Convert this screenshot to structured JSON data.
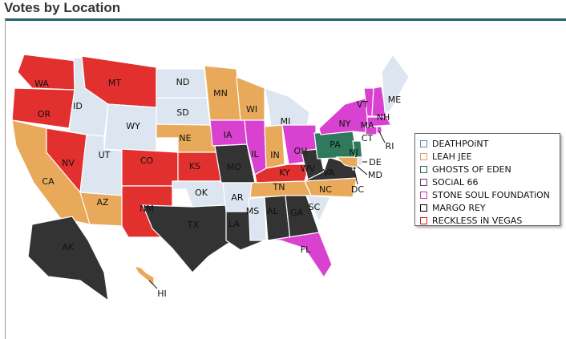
{
  "title": "Votes by Location",
  "legend": [
    {
      "label": "DEATHPOiNT",
      "color": "#dde6f0",
      "border": "#6688aa"
    },
    {
      "label": "LEAH JEE",
      "color": "#e8a95a",
      "border": "#d9a060"
    },
    {
      "label": "GHOSTS OF EDEN",
      "color": "#2f7a5c",
      "border": "#2f6a4c"
    },
    {
      "label": "SOCiAL 66",
      "color": "#7a5a7a",
      "border": "#664466"
    },
    {
      "label": "STONE SOUL FOUNDATiON",
      "color": "#d942d0",
      "border": "#cc33aa"
    },
    {
      "label": "MARGO REY",
      "color": "#333333",
      "border": "#000000"
    },
    {
      "label": "RECKLESS iN VEGAS",
      "color": "#e2302f",
      "border": "#cc2222"
    }
  ],
  "states": [
    {
      "abbr": "WA",
      "band": 6
    },
    {
      "abbr": "OR",
      "band": 6
    },
    {
      "abbr": "CA",
      "band": 1
    },
    {
      "abbr": "NV",
      "band": 6
    },
    {
      "abbr": "ID",
      "band": 0
    },
    {
      "abbr": "MT",
      "band": 6
    },
    {
      "abbr": "WY",
      "band": 0
    },
    {
      "abbr": "UT",
      "band": 0
    },
    {
      "abbr": "AZ",
      "band": 1
    },
    {
      "abbr": "CO",
      "band": 6
    },
    {
      "abbr": "NM",
      "band": 6
    },
    {
      "abbr": "ND",
      "band": 0
    },
    {
      "abbr": "SD",
      "band": 0
    },
    {
      "abbr": "NE",
      "band": 1
    },
    {
      "abbr": "KS",
      "band": 6
    },
    {
      "abbr": "OK",
      "band": 0
    },
    {
      "abbr": "TX",
      "band": 5
    },
    {
      "abbr": "MN",
      "band": 1
    },
    {
      "abbr": "IA",
      "band": 4
    },
    {
      "abbr": "MO",
      "band": 5
    },
    {
      "abbr": "AR",
      "band": 0
    },
    {
      "abbr": "LA",
      "band": 5
    },
    {
      "abbr": "WI",
      "band": 1
    },
    {
      "abbr": "IL",
      "band": 4
    },
    {
      "abbr": "MS",
      "band": 0
    },
    {
      "abbr": "MI",
      "band": 0
    },
    {
      "abbr": "IN",
      "band": 1
    },
    {
      "abbr": "OH",
      "band": 4
    },
    {
      "abbr": "KY",
      "band": 6
    },
    {
      "abbr": "TN",
      "band": 1
    },
    {
      "abbr": "AL",
      "band": 5
    },
    {
      "abbr": "GA",
      "band": 5
    },
    {
      "abbr": "FL",
      "band": 4
    },
    {
      "abbr": "SC",
      "band": 0
    },
    {
      "abbr": "NC",
      "band": 1
    },
    {
      "abbr": "WV",
      "band": 5
    },
    {
      "abbr": "VA",
      "band": 5
    },
    {
      "abbr": "PA",
      "band": 2
    },
    {
      "abbr": "NY",
      "band": 4
    },
    {
      "abbr": "VT",
      "band": 4
    },
    {
      "abbr": "NH",
      "band": 4
    },
    {
      "abbr": "ME",
      "band": 0
    },
    {
      "abbr": "MA",
      "band": 4
    },
    {
      "abbr": "CT",
      "band": 4
    },
    {
      "abbr": "RI",
      "band": 4
    },
    {
      "abbr": "NJ",
      "band": 2
    },
    {
      "abbr": "DE",
      "band": 0
    },
    {
      "abbr": "MD",
      "band": 1
    },
    {
      "abbr": "DC",
      "band": 5
    },
    {
      "abbr": "AK",
      "band": 5
    },
    {
      "abbr": "HI",
      "band": 1
    }
  ]
}
